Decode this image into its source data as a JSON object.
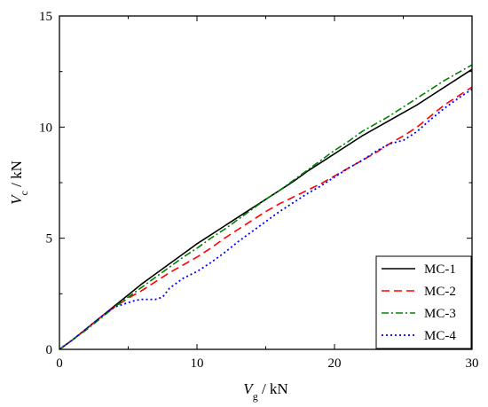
{
  "chart_data": {
    "type": "line",
    "title": "",
    "xlabel": {
      "symbol": "V",
      "subscript": "g",
      "unit": " / kN"
    },
    "ylabel": {
      "symbol": "V",
      "subscript": "c",
      "unit": " / kN"
    },
    "xlim": [
      0,
      30
    ],
    "ylim": [
      0,
      15
    ],
    "xticks": [
      0,
      10,
      20,
      30
    ],
    "yticks": [
      0,
      5,
      10,
      15
    ],
    "grid": false,
    "legend_position": "bottom-right",
    "series": [
      {
        "name": "MC-1",
        "color": "#000000",
        "dash": "solid",
        "x": [
          0,
          1,
          2,
          3,
          4,
          5,
          6,
          7,
          8,
          9,
          10,
          11,
          12,
          13,
          14,
          15,
          16,
          17,
          18,
          19,
          20,
          21,
          22,
          23,
          24,
          25,
          26,
          27,
          28,
          29,
          30
        ],
        "y": [
          0,
          0.45,
          0.95,
          1.45,
          1.95,
          2.45,
          2.95,
          3.4,
          3.85,
          4.3,
          4.75,
          5.15,
          5.55,
          5.95,
          6.35,
          6.75,
          7.15,
          7.55,
          8.0,
          8.4,
          8.8,
          9.2,
          9.6,
          9.95,
          10.3,
          10.65,
          11.0,
          11.4,
          11.8,
          12.2,
          12.6
        ]
      },
      {
        "name": "MC-2",
        "color": "#ff0000",
        "dash": "dashed",
        "x": [
          0,
          1,
          2,
          3,
          4,
          5,
          6,
          7,
          8,
          9,
          10,
          11,
          12,
          13,
          14,
          15,
          16,
          17,
          18,
          19,
          20,
          21,
          22,
          23,
          24,
          25,
          26,
          27,
          28,
          29,
          30
        ],
        "y": [
          0,
          0.45,
          0.95,
          1.45,
          1.9,
          2.3,
          2.65,
          3.05,
          3.45,
          3.8,
          4.15,
          4.55,
          5.0,
          5.4,
          5.8,
          6.2,
          6.55,
          6.85,
          7.15,
          7.45,
          7.8,
          8.15,
          8.5,
          8.85,
          9.25,
          9.6,
          10.0,
          10.5,
          11.0,
          11.4,
          11.8
        ]
      },
      {
        "name": "MC-3",
        "color": "#008000",
        "dash": "dashdot",
        "x": [
          0,
          1,
          2,
          3,
          4,
          5,
          6,
          7,
          8,
          9,
          10,
          11,
          12,
          13,
          14,
          15,
          16,
          17,
          18,
          19,
          20,
          21,
          22,
          23,
          24,
          25,
          26,
          27,
          28,
          29,
          30
        ],
        "y": [
          0,
          0.45,
          0.9,
          1.4,
          1.9,
          2.35,
          2.8,
          3.25,
          3.7,
          4.15,
          4.55,
          5.0,
          5.4,
          5.85,
          6.3,
          6.75,
          7.15,
          7.6,
          8.05,
          8.5,
          8.95,
          9.35,
          9.8,
          10.15,
          10.5,
          10.9,
          11.3,
          11.7,
          12.1,
          12.45,
          12.8
        ]
      },
      {
        "name": "MC-4",
        "color": "#0000ff",
        "dash": "dotted",
        "x": [
          0,
          1,
          2,
          3,
          4,
          5,
          5.5,
          6,
          7,
          7.5,
          8,
          9,
          10,
          11,
          12,
          13,
          14,
          15,
          16,
          17,
          18,
          19,
          20,
          21,
          22,
          23,
          24,
          25,
          26,
          27,
          28,
          29,
          30
        ],
        "y": [
          0,
          0.45,
          0.95,
          1.45,
          1.9,
          2.1,
          2.2,
          2.25,
          2.25,
          2.35,
          2.75,
          3.2,
          3.5,
          3.9,
          4.35,
          4.85,
          5.3,
          5.75,
          6.2,
          6.6,
          7.0,
          7.35,
          7.75,
          8.15,
          8.5,
          8.9,
          9.25,
          9.4,
          9.8,
          10.35,
          10.85,
          11.3,
          11.7
        ]
      }
    ]
  }
}
